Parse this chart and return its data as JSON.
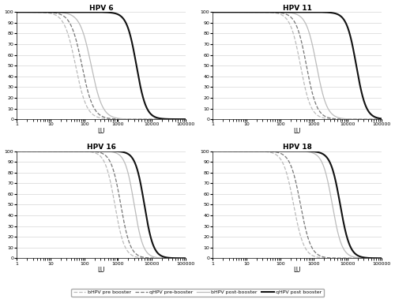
{
  "titles": [
    "HPV 6",
    "HPV 11",
    "HPV 16",
    "HPV 18"
  ],
  "xlabel": "LU",
  "ylim": [
    0,
    100
  ],
  "yticks": [
    0,
    10,
    20,
    30,
    40,
    50,
    60,
    70,
    80,
    90,
    100
  ],
  "xlim": [
    1,
    100000
  ],
  "xticks": [
    1,
    10,
    100,
    1000,
    10000,
    100000
  ],
  "background_color": "#ffffff",
  "grid_color": "#cccccc",
  "curve_params": {
    "HPV6": [
      {
        "x50": 55,
        "k": 6.0,
        "color": "#bbbbbb",
        "ls": "--",
        "lw": 0.9
      },
      {
        "x50": 85,
        "k": 6.0,
        "color": "#777777",
        "ls": "--",
        "lw": 0.9
      },
      {
        "x50": 160,
        "k": 6.0,
        "color": "#bbbbbb",
        "ls": "-",
        "lw": 0.9
      },
      {
        "x50": 3500,
        "k": 7.0,
        "color": "#111111",
        "ls": "-",
        "lw": 1.5
      }
    ],
    "HPV11": [
      {
        "x50": 400,
        "k": 6.5,
        "color": "#bbbbbb",
        "ls": "--",
        "lw": 0.9
      },
      {
        "x50": 600,
        "k": 6.5,
        "color": "#777777",
        "ls": "--",
        "lw": 0.9
      },
      {
        "x50": 1200,
        "k": 6.5,
        "color": "#bbbbbb",
        "ls": "-",
        "lw": 0.9
      },
      {
        "x50": 18000,
        "k": 7.0,
        "color": "#111111",
        "ls": "-",
        "lw": 1.5
      }
    ],
    "HPV16": [
      {
        "x50": 800,
        "k": 7.0,
        "color": "#bbbbbb",
        "ls": "--",
        "lw": 0.9
      },
      {
        "x50": 1200,
        "k": 7.0,
        "color": "#777777",
        "ls": "--",
        "lw": 0.9
      },
      {
        "x50": 3000,
        "k": 7.5,
        "color": "#bbbbbb",
        "ls": "-",
        "lw": 0.9
      },
      {
        "x50": 6000,
        "k": 7.5,
        "color": "#111111",
        "ls": "-",
        "lw": 1.5
      }
    ],
    "HPV18": [
      {
        "x50": 250,
        "k": 6.5,
        "color": "#bbbbbb",
        "ls": "--",
        "lw": 0.9
      },
      {
        "x50": 400,
        "k": 6.5,
        "color": "#777777",
        "ls": "--",
        "lw": 0.9
      },
      {
        "x50": 3500,
        "k": 7.0,
        "color": "#bbbbbb",
        "ls": "-",
        "lw": 0.9
      },
      {
        "x50": 6000,
        "k": 7.0,
        "color": "#111111",
        "ls": "-",
        "lw": 1.5
      }
    ]
  },
  "legend": [
    {
      "label": "bHPV pre booster",
      "ls": "--",
      "color": "#bbbbbb",
      "lw": 0.9
    },
    {
      "label": "qHPV pre-booster",
      "ls": "--",
      "color": "#777777",
      "lw": 0.9
    },
    {
      "label": "bHPV post-booster",
      "ls": "-",
      "color": "#bbbbbb",
      "lw": 0.9
    },
    {
      "label": "qHPV post booster",
      "ls": "-",
      "color": "#111111",
      "lw": 1.5
    }
  ]
}
